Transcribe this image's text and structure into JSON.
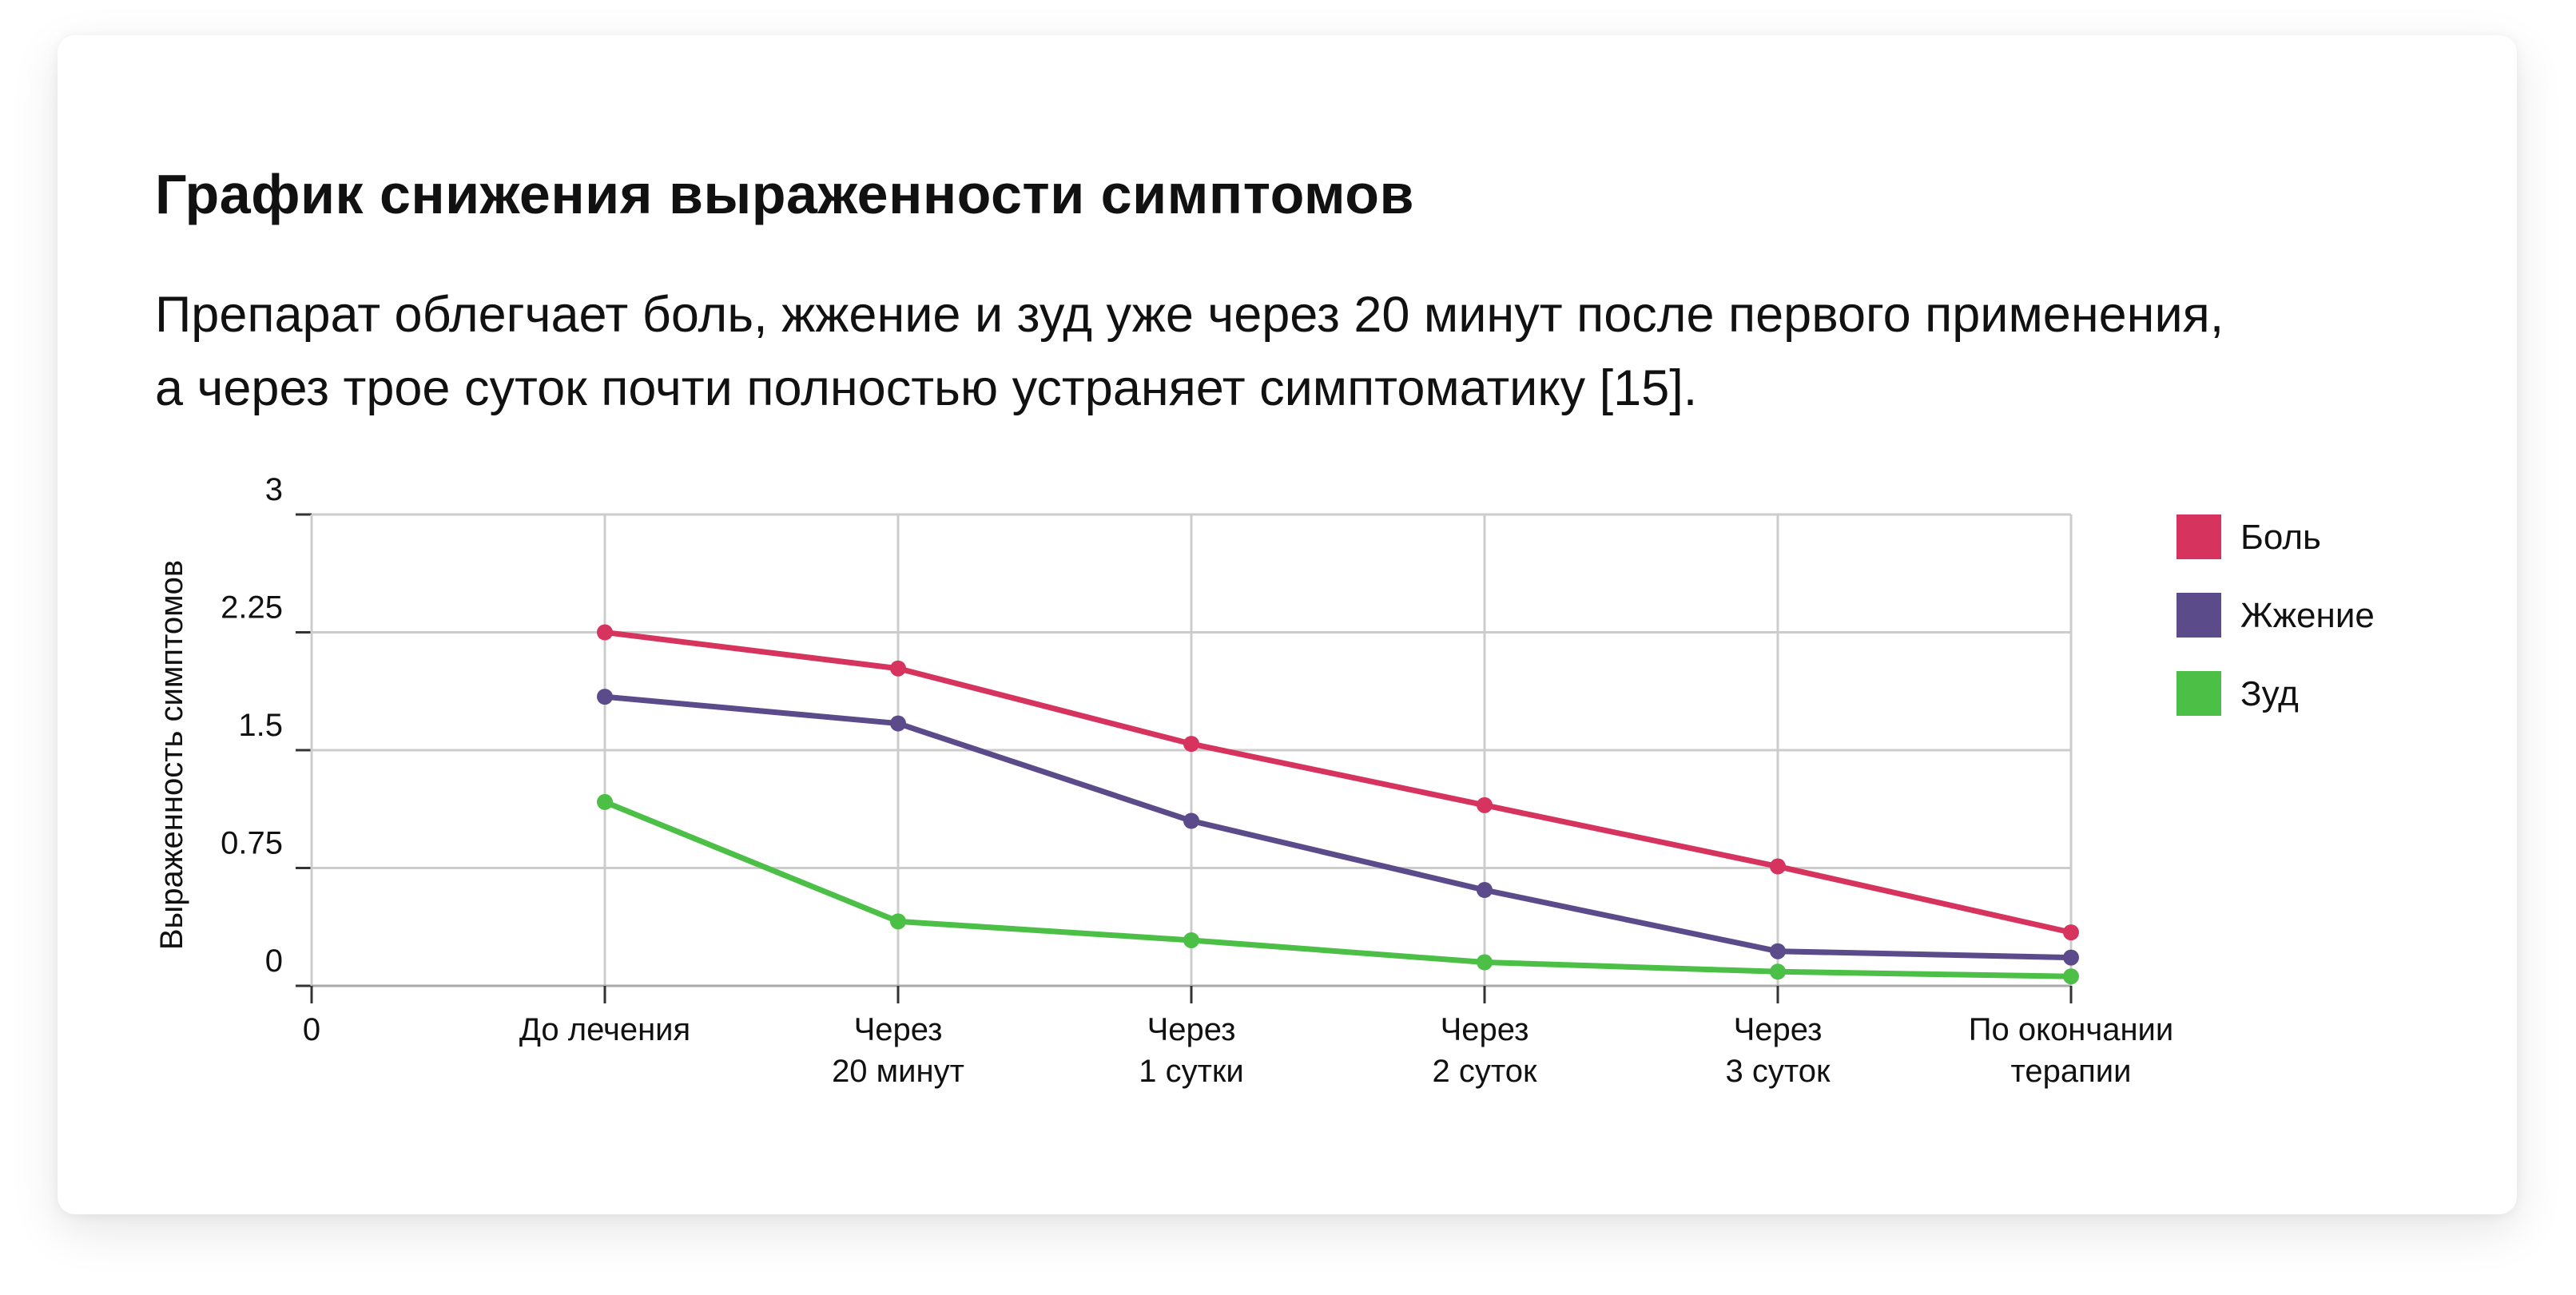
{
  "header": {
    "title": "График снижения выраженности симптомов",
    "subtitle_line1": "Препарат облегчает боль, жжение и зуд уже через 20 минут после первого применения,",
    "subtitle_line2": "а через трое суток почти полностью устраняет симптоматику [15]."
  },
  "chart_data": {
    "type": "line",
    "title": "",
    "xlabel": "",
    "ylabel": "Выраженность симптомов",
    "x_origin_label": "0",
    "categories": [
      [
        "До лечения"
      ],
      [
        "Через",
        "20 минут"
      ],
      [
        "Через",
        "1 сутки"
      ],
      [
        "Через",
        "2 суток"
      ],
      [
        "Через",
        "3 суток"
      ],
      [
        "По окончании",
        "терапии"
      ]
    ],
    "ylim": [
      0,
      3
    ],
    "yticks": [
      "0",
      "0.75",
      "1.5",
      "2.25",
      "3"
    ],
    "grid": true,
    "legend_position": "right",
    "series": [
      {
        "name": "Боль",
        "color": "#d6335e",
        "values": [
          2.25,
          2.02,
          1.54,
          1.15,
          0.76,
          0.34
        ]
      },
      {
        "name": "Жжение",
        "color": "#5b4b8a",
        "values": [
          1.84,
          1.67,
          1.05,
          0.61,
          0.22,
          0.18
        ]
      },
      {
        "name": "Зуд",
        "color": "#4bbf46",
        "values": [
          1.17,
          0.41,
          0.29,
          0.15,
          0.09,
          0.06
        ]
      }
    ]
  }
}
